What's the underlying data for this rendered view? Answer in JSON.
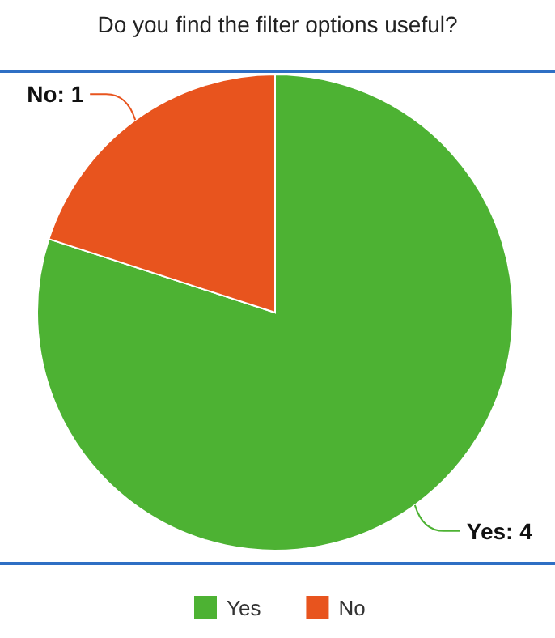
{
  "chart_data": {
    "type": "pie",
    "title": "Do you find the filter options useful?",
    "categories": [
      "Yes",
      "No"
    ],
    "values": [
      4,
      1
    ],
    "colors": [
      "#4db233",
      "#e8541e"
    ],
    "value_labels": [
      "Yes: 4",
      "No: 1"
    ],
    "legend": "bottom"
  }
}
